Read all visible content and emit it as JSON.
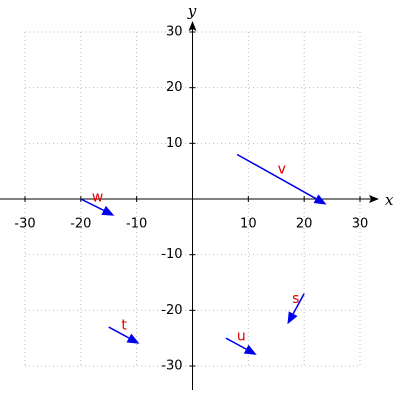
{
  "chart_data": {
    "type": "vector",
    "xlabel": "x",
    "ylabel": "y",
    "xlim": [
      -30,
      30
    ],
    "ylim": [
      -30,
      30
    ],
    "xticks": [
      -30,
      -20,
      -10,
      10,
      20,
      30
    ],
    "yticks": [
      -30,
      -20,
      -10,
      10,
      20,
      30
    ],
    "grid": true,
    "color": "#0000ee",
    "label_color": "#e00000",
    "vectors": [
      {
        "name": "v",
        "x0": 8,
        "y0": 8,
        "x1": 24,
        "y1": -1
      },
      {
        "name": "w",
        "x0": -20,
        "y0": 0,
        "x1": -14,
        "y1": -3
      },
      {
        "name": "t",
        "x0": -15,
        "y0": -23,
        "x1": -9.5,
        "y1": -26
      },
      {
        "name": "u",
        "x0": 6,
        "y0": -25,
        "x1": 11.5,
        "y1": -28
      },
      {
        "name": "s",
        "x0": 20,
        "y0": -17,
        "x1": 17,
        "y1": -22.5
      }
    ]
  }
}
